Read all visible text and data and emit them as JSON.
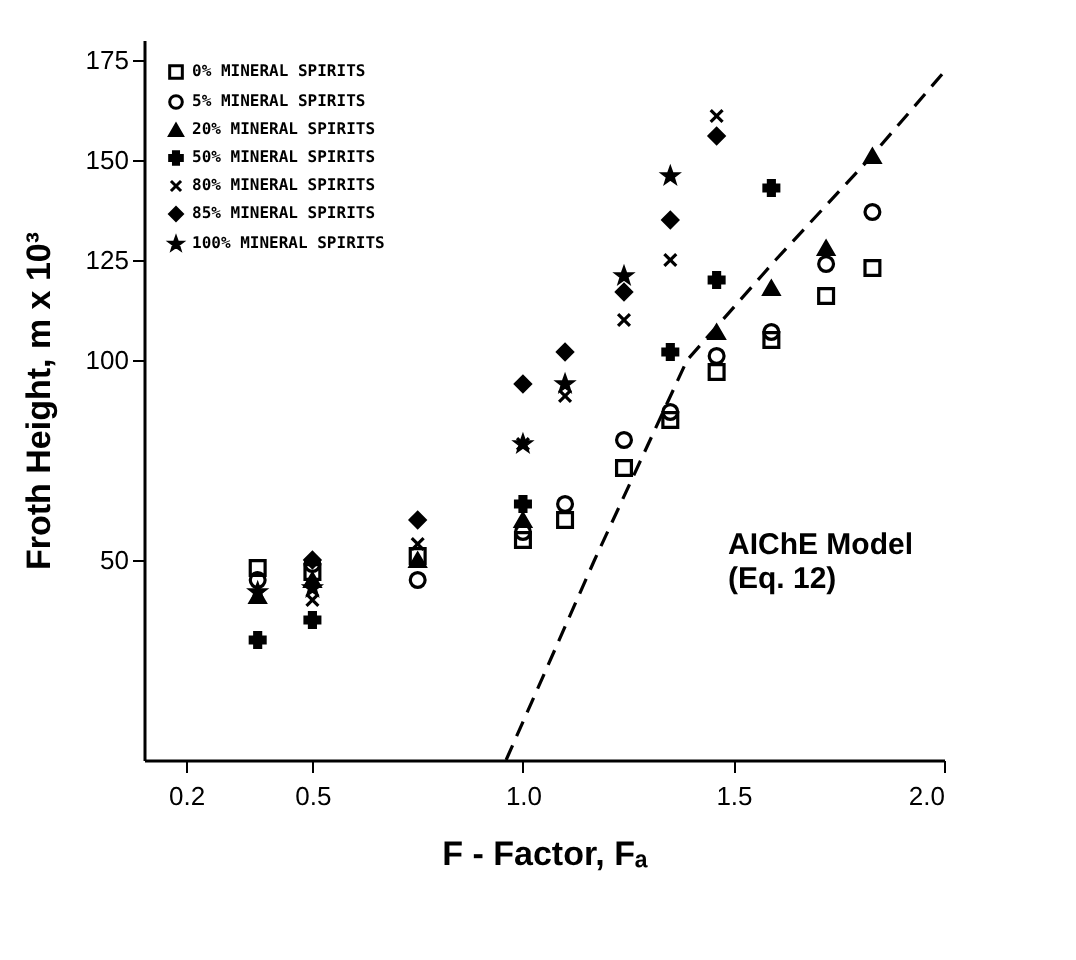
{
  "chart_data": {
    "type": "scatter",
    "xlabel": "F - Factor, Fₐ",
    "ylabel": "Froth Height, m x 10³",
    "xlim": [
      0.1,
      2.0
    ],
    "ylim": [
      0,
      180
    ],
    "xticks": [
      0.2,
      0.5,
      {
        "value": 1.0,
        "label": "1.0"
      },
      1.5,
      {
        "value": 2.0,
        "label": "2.0"
      }
    ],
    "yticks": [
      50,
      100,
      125,
      150,
      175
    ],
    "grid": false,
    "legend": "top left",
    "annotations": [
      "AIChE Model\n(Eq. 12)"
    ],
    "series": [
      {
        "name": "0% MINERAL SPIRITS",
        "color": "#000000",
        "marker": "square",
        "x": [
          0.37,
          0.5,
          0.75,
          1.0,
          1.1,
          1.24,
          1.35,
          1.46,
          1.59,
          1.72,
          1.83
        ],
        "values": [
          48,
          47,
          51,
          55,
          60,
          73,
          85,
          97,
          105,
          116,
          123
        ]
      },
      {
        "name": "5% MINERAL SPIRITS",
        "color": "#000000",
        "marker": "circle",
        "x": [
          0.37,
          0.5,
          0.75,
          1.0,
          1.1,
          1.24,
          1.35,
          1.46,
          1.59,
          1.72,
          1.83
        ],
        "values": [
          45,
          49,
          45,
          57,
          64,
          80,
          87,
          101,
          107,
          124,
          137
        ]
      },
      {
        "name": "20% MINERAL SPIRITS",
        "color": "#000000",
        "marker": "triangle",
        "x": [
          0.37,
          0.5,
          0.75,
          1.0,
          1.46,
          1.59,
          1.72,
          1.83
        ],
        "values": [
          41,
          45,
          50,
          60,
          107,
          118,
          128,
          151
        ]
      },
      {
        "name": "50% MINERAL SPIRITS",
        "color": "#000000",
        "marker": "cross",
        "x": [
          0.37,
          0.5,
          1.0,
          1.35,
          1.46,
          1.59
        ],
        "values": [
          30,
          35,
          64,
          102,
          120,
          143
        ]
      },
      {
        "name": "80% MINERAL SPIRITS",
        "color": "#000000",
        "x": [
          0.37,
          0.5,
          0.75,
          1.0,
          1.1,
          1.24,
          1.35,
          1.46
        ],
        "values": [
          41,
          40,
          54,
          79,
          91,
          110,
          125,
          161
        ]
      },
      {
        "name": "85% MINERAL SPIRITS",
        "color": "#000000",
        "marker": "diamond",
        "x": [
          0.5,
          0.75,
          1.0,
          1.1,
          1.24,
          1.35,
          1.46
        ],
        "values": [
          50,
          60,
          94,
          102,
          117,
          135,
          156
        ]
      },
      {
        "name": "100% MINERAL SPIRITS",
        "color": "#000000",
        "marker": "star",
        "x": [
          0.37,
          0.5,
          1.0,
          1.1,
          1.24,
          1.35
        ],
        "values": [
          42,
          43,
          79,
          94,
          121,
          146
        ]
      },
      {
        "type": "line",
        "color": "#000000",
        "line_style": "dashed",
        "marker": "none",
        "x": [
          0.96,
          1.17,
          1.39,
          1.6,
          1.82,
          2.0
        ],
        "values": [
          0,
          50,
          100,
          125,
          150,
          172
        ]
      }
    ]
  }
}
